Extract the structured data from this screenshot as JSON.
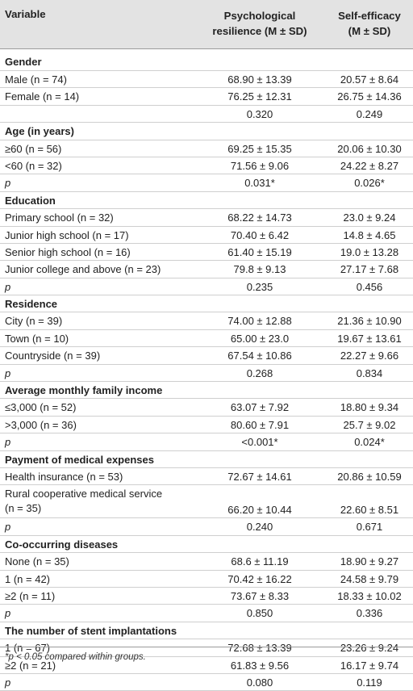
{
  "header": {
    "variable": "Variable",
    "col1_line1": "Psychological",
    "col1_line2": "resilience (M ± SD)",
    "col2_line1": "Self-efficacy",
    "col2_line2": "(M ± SD)"
  },
  "rows": [
    {
      "kind": "group",
      "label": "Gender"
    },
    {
      "kind": "data",
      "label": "Male (n = 74)",
      "v1": "68.90 ± 13.39",
      "v2": "20.57 ± 8.64"
    },
    {
      "kind": "data",
      "label": "Female (n = 14)",
      "v1": "76.25 ± 12.31",
      "v2": "26.75 ± 14.36"
    },
    {
      "kind": "p",
      "label": "",
      "v1": "0.320",
      "v2": "0.249"
    },
    {
      "kind": "group",
      "label": "Age (in years)"
    },
    {
      "kind": "data",
      "label": "≥60 (n = 56)",
      "v1": "69.25 ± 15.35",
      "v2": "20.06 ± 10.30"
    },
    {
      "kind": "data",
      "label": "<60 (n = 32)",
      "v1": "71.56 ± 9.06",
      "v2": "24.22 ± 8.27"
    },
    {
      "kind": "p",
      "label": "p",
      "v1": "0.031*",
      "v2": "0.026*"
    },
    {
      "kind": "group",
      "label": "Education"
    },
    {
      "kind": "data",
      "label": "Primary school (n = 32)",
      "v1": "68.22 ± 14.73",
      "v2": "23.0 ± 9.24"
    },
    {
      "kind": "data",
      "label": "Junior high school (n = 17)",
      "v1": "70.40 ± 6.42",
      "v2": "14.8 ± 4.65"
    },
    {
      "kind": "data",
      "label": "Senior high school (n = 16)",
      "v1": "61.40 ± 15.19",
      "v2": "19.0 ± 13.28"
    },
    {
      "kind": "data",
      "label": "Junior college and above (n = 23)",
      "v1": "79.8 ± 9.13",
      "v2": "27.17 ± 7.68"
    },
    {
      "kind": "p",
      "label": "p",
      "v1": "0.235",
      "v2": "0.456"
    },
    {
      "kind": "group",
      "label": "Residence"
    },
    {
      "kind": "data",
      "label": "City (n = 39)",
      "v1": "74.00 ± 12.88",
      "v2": "21.36 ± 10.90"
    },
    {
      "kind": "data",
      "label": "Town (n = 10)",
      "v1": "65.00 ± 23.0",
      "v2": "19.67 ± 13.61"
    },
    {
      "kind": "data",
      "label": "Countryside (n = 39)",
      "v1": "67.54 ± 10.86",
      "v2": "22.27 ± 9.66"
    },
    {
      "kind": "p",
      "label": "p",
      "v1": "0.268",
      "v2": "0.834"
    },
    {
      "kind": "group",
      "label": "Average monthly family income"
    },
    {
      "kind": "data",
      "label": "≤3,000 (n = 52)",
      "v1": "63.07 ± 7.92",
      "v2": "18.80 ± 9.34"
    },
    {
      "kind": "data",
      "label": ">3,000 (n = 36)",
      "v1": "80.60 ± 7.91",
      "v2": "25.7 ± 9.02"
    },
    {
      "kind": "p",
      "label": "p",
      "v1": "<0.001*",
      "v2": "0.024*"
    },
    {
      "kind": "group",
      "label": "Payment of medical expenses"
    },
    {
      "kind": "data",
      "label": "Health insurance (n = 53)",
      "v1": "72.67 ± 14.61",
      "v2": "20.86 ± 10.59"
    },
    {
      "kind": "tall",
      "label": "Rural cooperative medical service (n = 35)",
      "v1": "66.20 ± 10.44",
      "v2": "22.60 ± 8.51"
    },
    {
      "kind": "p",
      "label": "p",
      "v1": "0.240",
      "v2": "0.671"
    },
    {
      "kind": "group",
      "label": "Co-occurring diseases"
    },
    {
      "kind": "data",
      "label": "None (n = 35)",
      "v1": "68.6 ± 11.19",
      "v2": "18.90 ± 9.27"
    },
    {
      "kind": "data",
      "label": "1 (n = 42)",
      "v1": "70.42 ± 16.22",
      "v2": "24.58 ± 9.79"
    },
    {
      "kind": "data",
      "label": "≥2 (n = 11)",
      "v1": "73.67 ± 8.33",
      "v2": "18.33 ± 10.02"
    },
    {
      "kind": "p",
      "label": "p",
      "v1": "0.850",
      "v2": "0.336"
    },
    {
      "kind": "group",
      "label": "The number of stent implantations"
    },
    {
      "kind": "data",
      "label": "1 (n = 67)",
      "v1": "72.68 ± 13.39",
      "v2": "23.26 ± 9.24"
    },
    {
      "kind": "data",
      "label": "≥2 (n = 21)",
      "v1": "61.83 ± 9.56",
      "v2": "16.17 ± 9.74"
    },
    {
      "kind": "p",
      "label": "p",
      "v1": "0.080",
      "v2": "0.119"
    }
  ],
  "footnote": "*p < 0.05 compared within groups."
}
